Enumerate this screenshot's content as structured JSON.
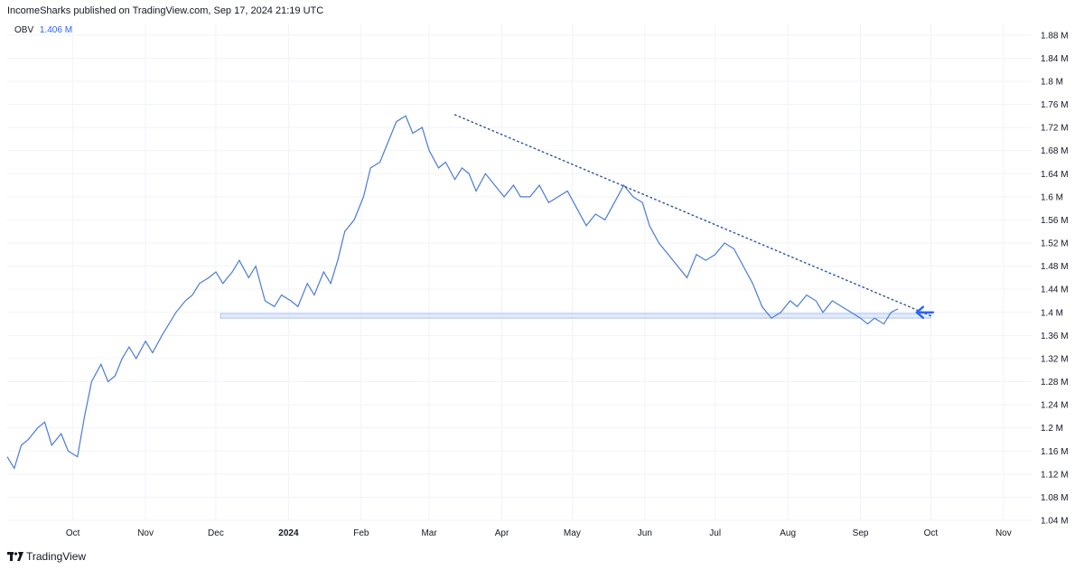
{
  "header": {
    "attribution": "IncomeSharks published on TradingView.com, Sep 17, 2024 21:19 UTC"
  },
  "legend": {
    "name": "OBV",
    "value": "1.406 M"
  },
  "footer": {
    "brand": "TradingView",
    "logo_icon": "tradingview-logo-icon"
  },
  "colors": {
    "series": "#4a7bd9",
    "support_band": "#aec5f3",
    "trendline": "#2a4fa8",
    "arrow": "#2962ff",
    "grid": "#f0f3fa"
  },
  "chart_data": {
    "type": "line",
    "title": "",
    "xlabel": "",
    "ylabel": "",
    "indicator": "OBV",
    "x_range": [
      "2023-09-03",
      "2024-11-13"
    ],
    "ylim": [
      1.04,
      1.9
    ],
    "y_unit": "M",
    "grid": true,
    "y_ticks": [
      "1.04 M",
      "1.08 M",
      "1.12 M",
      "1.16 M",
      "1.2 M",
      "1.24 M",
      "1.28 M",
      "1.32 M",
      "1.36 M",
      "1.4 M",
      "1.44 M",
      "1.48 M",
      "1.52 M",
      "1.56 M",
      "1.6 M",
      "1.64 M",
      "1.68 M",
      "1.72 M",
      "1.76 M",
      "1.8 M",
      "1.84 M",
      "1.88 M"
    ],
    "y_tick_values": [
      1.04,
      1.08,
      1.12,
      1.16,
      1.2,
      1.24,
      1.28,
      1.32,
      1.36,
      1.4,
      1.44,
      1.48,
      1.52,
      1.56,
      1.6,
      1.64,
      1.68,
      1.72,
      1.76,
      1.8,
      1.84,
      1.88
    ],
    "x_ticks": [
      {
        "label": "Oct",
        "date": "2023-10-01",
        "bold": false
      },
      {
        "label": "Nov",
        "date": "2023-11-01",
        "bold": false
      },
      {
        "label": "Dec",
        "date": "2023-12-01",
        "bold": false
      },
      {
        "label": "2024",
        "date": "2024-01-01",
        "bold": true
      },
      {
        "label": "Feb",
        "date": "2024-02-01",
        "bold": false
      },
      {
        "label": "Mar",
        "date": "2024-03-01",
        "bold": false
      },
      {
        "label": "Apr",
        "date": "2024-04-01",
        "bold": false
      },
      {
        "label": "May",
        "date": "2024-05-01",
        "bold": false
      },
      {
        "label": "Jun",
        "date": "2024-06-01",
        "bold": false
      },
      {
        "label": "Jul",
        "date": "2024-07-01",
        "bold": false
      },
      {
        "label": "Aug",
        "date": "2024-08-01",
        "bold": false
      },
      {
        "label": "Sep",
        "date": "2024-09-01",
        "bold": false
      },
      {
        "label": "Oct",
        "date": "2024-10-01",
        "bold": false
      },
      {
        "label": "Nov",
        "date": "2024-11-01",
        "bold": false
      }
    ],
    "series": [
      {
        "x": [
          "2023-09-03",
          "2023-09-06",
          "2023-09-09",
          "2023-09-12",
          "2023-09-16",
          "2023-09-19",
          "2023-09-22",
          "2023-09-26",
          "2023-09-29",
          "2023-10-03",
          "2023-10-06",
          "2023-10-09",
          "2023-10-13",
          "2023-10-16",
          "2023-10-19",
          "2023-10-22",
          "2023-10-25",
          "2023-10-28",
          "2023-11-01",
          "2023-11-04",
          "2023-11-08",
          "2023-11-11",
          "2023-11-14",
          "2023-11-18",
          "2023-11-21",
          "2023-11-24",
          "2023-11-28",
          "2023-12-01",
          "2023-12-04",
          "2023-12-08",
          "2023-12-11",
          "2023-12-15",
          "2023-12-18",
          "2023-12-22",
          "2023-12-26",
          "2023-12-29",
          "2024-01-02",
          "2024-01-05",
          "2024-01-09",
          "2024-01-12",
          "2024-01-16",
          "2024-01-19",
          "2024-01-22",
          "2024-01-25",
          "2024-01-29",
          "2024-02-02",
          "2024-02-05",
          "2024-02-09",
          "2024-02-13",
          "2024-02-16",
          "2024-02-20",
          "2024-02-23",
          "2024-02-27",
          "2024-03-01",
          "2024-03-05",
          "2024-03-08",
          "2024-03-12",
          "2024-03-15",
          "2024-03-18",
          "2024-03-21",
          "2024-03-25",
          "2024-03-29",
          "2024-04-02",
          "2024-04-06",
          "2024-04-09",
          "2024-04-13",
          "2024-04-17",
          "2024-04-21",
          "2024-04-25",
          "2024-04-29",
          "2024-05-03",
          "2024-05-07",
          "2024-05-11",
          "2024-05-15",
          "2024-05-19",
          "2024-05-23",
          "2024-05-27",
          "2024-05-31",
          "2024-06-03",
          "2024-06-07",
          "2024-06-11",
          "2024-06-15",
          "2024-06-19",
          "2024-06-23",
          "2024-06-27",
          "2024-07-01",
          "2024-07-05",
          "2024-07-09",
          "2024-07-13",
          "2024-07-17",
          "2024-07-21",
          "2024-07-25",
          "2024-07-29",
          "2024-08-02",
          "2024-08-05",
          "2024-08-09",
          "2024-08-13",
          "2024-08-16",
          "2024-08-20",
          "2024-08-24",
          "2024-08-28",
          "2024-09-01",
          "2024-09-04",
          "2024-09-07",
          "2024-09-11",
          "2024-09-14",
          "2024-09-17"
        ],
        "values": [
          1.15,
          1.13,
          1.17,
          1.18,
          1.2,
          1.21,
          1.17,
          1.19,
          1.16,
          1.15,
          1.22,
          1.28,
          1.31,
          1.28,
          1.29,
          1.32,
          1.34,
          1.32,
          1.35,
          1.33,
          1.36,
          1.38,
          1.4,
          1.42,
          1.43,
          1.45,
          1.46,
          1.47,
          1.45,
          1.47,
          1.49,
          1.46,
          1.48,
          1.42,
          1.41,
          1.43,
          1.42,
          1.41,
          1.45,
          1.43,
          1.47,
          1.45,
          1.49,
          1.54,
          1.56,
          1.6,
          1.65,
          1.66,
          1.7,
          1.73,
          1.74,
          1.71,
          1.72,
          1.68,
          1.65,
          1.66,
          1.63,
          1.65,
          1.64,
          1.61,
          1.64,
          1.62,
          1.6,
          1.62,
          1.6,
          1.6,
          1.62,
          1.59,
          1.6,
          1.61,
          1.58,
          1.55,
          1.57,
          1.56,
          1.59,
          1.62,
          1.6,
          1.59,
          1.55,
          1.52,
          1.5,
          1.48,
          1.46,
          1.5,
          1.49,
          1.5,
          1.52,
          1.51,
          1.48,
          1.45,
          1.41,
          1.39,
          1.4,
          1.42,
          1.41,
          1.43,
          1.42,
          1.4,
          1.42,
          1.41,
          1.4,
          1.39,
          1.38,
          1.39,
          1.38,
          1.4,
          1.406
        ]
      }
    ],
    "annotations": [
      {
        "type": "horizontal_band",
        "ylim": [
          1.39,
          1.398
        ],
        "x_range": [
          "2023-12-03",
          "2024-10-01"
        ],
        "label": ""
      },
      {
        "type": "trendline",
        "style": "dotted",
        "points": [
          [
            "2024-03-12",
            1.742
          ],
          [
            "2024-10-01",
            1.394
          ]
        ],
        "label": ""
      },
      {
        "type": "arrow",
        "direction": "left",
        "at": [
          "2024-09-25",
          1.4
        ],
        "label": ""
      }
    ]
  }
}
